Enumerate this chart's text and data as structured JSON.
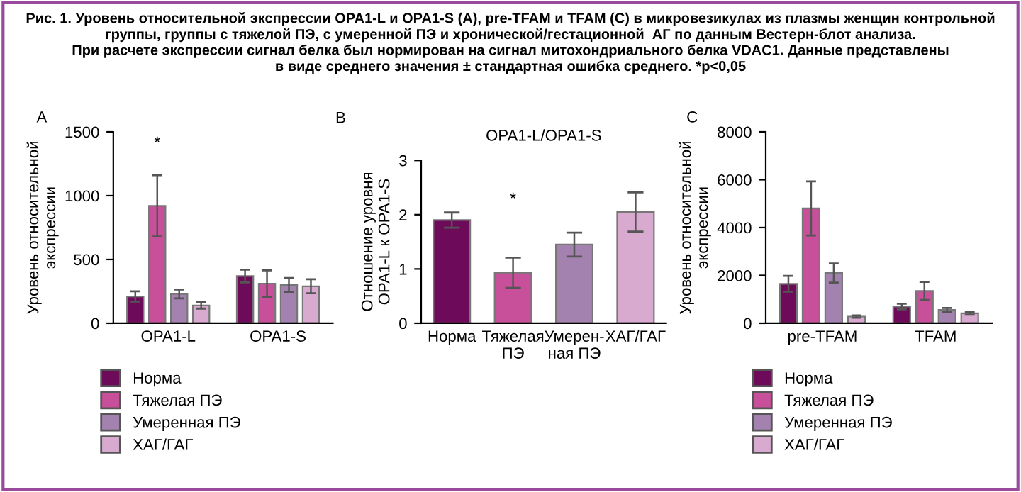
{
  "chart_data": [
    {
      "type": "bar",
      "title": "Рис. 1. Уровень относительной экспрессии OPA1-L и OPA1-S (A), pre-TFAM и TFAM (C) в микровезикулах из плазмы женщин контрольной\nгруппы, группы с тяжелой ПЭ, с умеренной ПЭ и хронической/гестационной  АГ по данным Вестерн-блот анализа.\nПри расчете экспрессии сигнал белка был нормирован на сигнал митохондриального белка VDAC1. Данные представлены\nв виде среднего значения ± стандартная ошибка среднего. *p<0,05",
      "subtitle": "A",
      "ylabel": "Уровень относительной\nэкспрессии",
      "categories": [
        "OPA1-L",
        "OPA1-S"
      ],
      "series": [
        {
          "name": "Норма",
          "color": "#6e0a5a",
          "values": [
            210,
            370
          ],
          "errors": [
            40,
            50
          ]
        },
        {
          "name": "Тяжелая ПЭ",
          "color": "#c8509a",
          "values": [
            920,
            310
          ],
          "errors": [
            240,
            105
          ]
        },
        {
          "name": "Умеренная ПЭ",
          "color": "#a482b0",
          "values": [
            230,
            300
          ],
          "errors": [
            35,
            55
          ]
        },
        {
          "name": "ХАГ/ГАГ",
          "color": "#d8aad0",
          "values": [
            140,
            290
          ],
          "errors": [
            25,
            55
          ]
        }
      ],
      "ylim": [
        0,
        1500
      ],
      "yticks": [
        0,
        500,
        1000,
        1500
      ],
      "legend": "bottom",
      "annotations": [
        "*"
      ]
    },
    {
      "type": "bar",
      "subtitle": "B",
      "title": "OPA1-L/OPA1-S",
      "ylabel": "Отношение уровня\nOPA1-L к OPA1-S",
      "categories": [
        "Норма",
        "Тяжелая\nПЭ",
        "Умерен-\nная ПЭ",
        "ХАГ/ГАГ"
      ],
      "values": [
        1.9,
        0.93,
        1.45,
        2.05
      ],
      "errors": [
        0.14,
        0.28,
        0.22,
        0.36
      ],
      "colors": [
        "#6e0a5a",
        "#c8509a",
        "#a482b0",
        "#d8aad0"
      ],
      "ylim": [
        0,
        3
      ],
      "yticks": [
        0,
        1,
        2,
        3
      ],
      "annotations": [
        "*"
      ]
    },
    {
      "type": "bar",
      "subtitle": "C",
      "ylabel": "Уровень относительной\nэкспрессии",
      "categories": [
        "pre-TFAM",
        "TFAM"
      ],
      "series": [
        {
          "name": "Норма",
          "color": "#6e0a5a",
          "values": [
            1650,
            700
          ],
          "errors": [
            330,
            120
          ]
        },
        {
          "name": "Тяжелая ПЭ",
          "color": "#c8509a",
          "values": [
            4800,
            1350
          ],
          "errors": [
            1130,
            380
          ]
        },
        {
          "name": "Умеренная ПЭ",
          "color": "#a482b0",
          "values": [
            2100,
            560
          ],
          "errors": [
            400,
            80
          ]
        },
        {
          "name": "ХАГ/ГАГ",
          "color": "#d8aad0",
          "values": [
            280,
            420
          ],
          "errors": [
            50,
            60
          ]
        }
      ],
      "ylim": [
        0,
        8000
      ],
      "yticks": [
        0,
        2000,
        4000,
        6000,
        8000
      ],
      "legend": "bottom"
    }
  ]
}
